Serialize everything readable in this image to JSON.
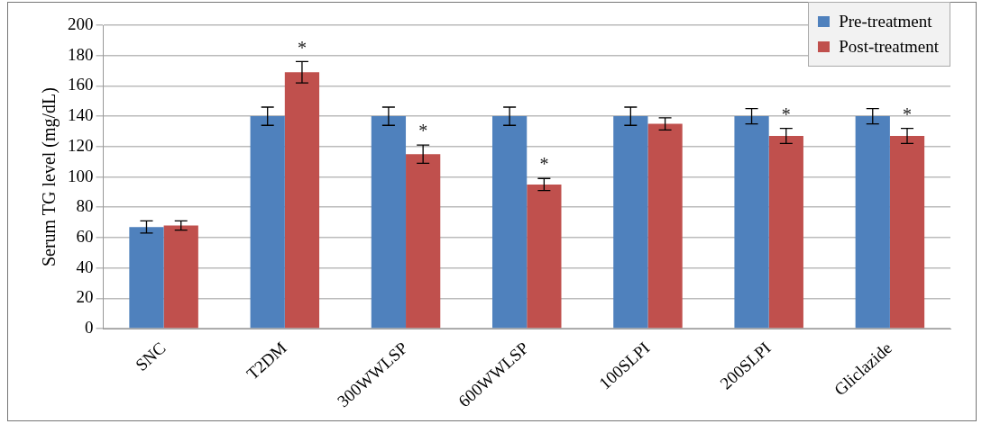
{
  "chart_data": {
    "type": "bar",
    "ylabel": "Serum TG level (mg/dL)",
    "categories": [
      "SNC",
      "T2DM",
      "300WWLSP",
      "600WWLSP",
      "100SLPI",
      "200SLPI",
      "Gliclazide"
    ],
    "series": [
      {
        "name": "Pre-treatment",
        "color": "#4f81bd",
        "values": [
          67,
          140,
          140,
          140,
          140,
          140,
          140
        ],
        "errors": [
          4,
          6,
          6,
          6,
          6,
          5,
          5
        ]
      },
      {
        "name": "Post-treatment",
        "color": "#c0504d",
        "values": [
          68,
          169,
          115,
          95,
          135,
          127,
          127
        ],
        "errors": [
          3,
          7,
          6,
          4,
          4,
          5,
          5
        ]
      }
    ],
    "ylim": [
      0,
      200
    ],
    "yticks": [
      0,
      20,
      40,
      60,
      80,
      100,
      120,
      140,
      160,
      180,
      200
    ],
    "grid": "y",
    "legend": "top right",
    "annotations": [
      {
        "text": "*",
        "x": "T2DM",
        "y": 169
      },
      {
        "text": "*",
        "x": "300WWLSP",
        "y": 115
      },
      {
        "text": "*",
        "x": "600WWLSP",
        "y": 95
      },
      {
        "text": "*",
        "x": "200SLPI",
        "y": 127
      },
      {
        "text": "*",
        "x": "Gliclazide",
        "y": 127
      }
    ]
  }
}
